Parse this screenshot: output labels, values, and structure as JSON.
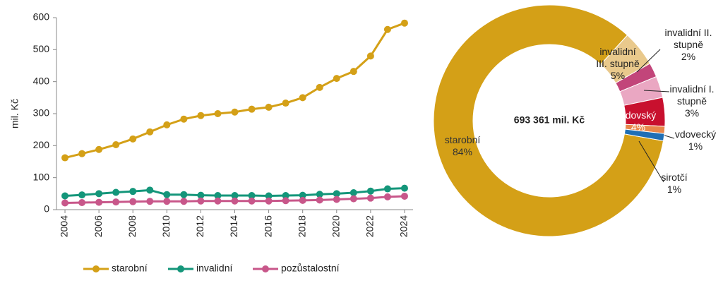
{
  "chart_data": [
    {
      "type": "line",
      "y_label": "mil. Kč",
      "x": [
        2004,
        2005,
        2006,
        2007,
        2008,
        2009,
        2010,
        2011,
        2012,
        2013,
        2014,
        2015,
        2016,
        2017,
        2018,
        2019,
        2020,
        2021,
        2022,
        2023,
        2024
      ],
      "xlim": [
        2003.5,
        2024.5
      ],
      "xticks": [
        2004,
        2006,
        2008,
        2010,
        2012,
        2014,
        2016,
        2018,
        2020,
        2022,
        2024
      ],
      "ylim": [
        0,
        600
      ],
      "yticks": [
        0,
        100,
        200,
        300,
        400,
        500,
        600
      ],
      "series": [
        {
          "name": "starobní",
          "color": "#d4a017",
          "values": [
            162,
            175,
            188,
            203,
            221,
            243,
            265,
            283,
            294,
            300,
            305,
            314,
            320,
            333,
            350,
            382,
            410,
            432,
            480,
            563,
            583
          ]
        },
        {
          "name": "invalidní",
          "color": "#14967a",
          "values": [
            43,
            46,
            50,
            54,
            57,
            61,
            47,
            47,
            45,
            44,
            44,
            44,
            43,
            44,
            45,
            48,
            50,
            53,
            58,
            65,
            67
          ]
        },
        {
          "name": "pozůstalostní",
          "color": "#c8578a",
          "values": [
            21,
            22,
            23,
            24,
            25,
            26,
            26,
            26,
            27,
            27,
            27,
            27,
            27,
            28,
            29,
            30,
            32,
            34,
            36,
            40,
            42
          ]
        }
      ]
    },
    {
      "type": "pie",
      "center_label": "693 361 mil. Kč",
      "categories": [
        "starobní",
        "invalidní III. stupně",
        "invalidní II. stupně",
        "invalidní I. stupně",
        "vdovský",
        "vdovecký",
        "sirotčí"
      ],
      "values": [
        84,
        5,
        2,
        3,
        4,
        1,
        1
      ],
      "value_labels": [
        "84%",
        "5%",
        "2%",
        "3%",
        "4%",
        "1%",
        "1%"
      ],
      "colors": [
        "#d4a017",
        "#e9c98c",
        "#c2457a",
        "#eaa7c2",
        "#c8102e",
        "#e8874a",
        "#1f6fb5"
      ]
    }
  ]
}
